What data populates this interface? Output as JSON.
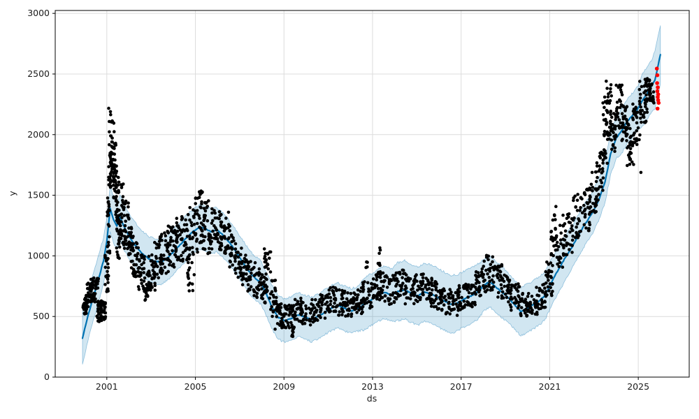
{
  "chart_data": {
    "type": "line",
    "title": "",
    "xlabel": "ds",
    "ylabel": "y",
    "x_range": [
      1998.67,
      2027.3
    ],
    "y_range": [
      0,
      3024
    ],
    "x_ticks": [
      2001,
      2005,
      2009,
      2013,
      2017,
      2021,
      2025
    ],
    "y_ticks": [
      0,
      500,
      1000,
      1500,
      2000,
      2500,
      3000
    ],
    "grid": true,
    "legend": "none",
    "colors": {
      "observed": "#000000",
      "forecast_line": "#0072B2",
      "uncertainty_fill": "rgba(0,114,178,0.18)",
      "uncertainty_edge": "rgba(0,114,178,0.38)",
      "highlight": "#ff0000"
    },
    "forecast": {
      "x": [
        1999.9,
        2000.1,
        2000.35,
        2000.6,
        2000.85,
        2001.0,
        2001.15,
        2001.3,
        2001.45,
        2001.6,
        2001.75,
        2001.95,
        2002.15,
        2002.4,
        2002.65,
        2002.9,
        2003.15,
        2003.45,
        2003.75,
        2004.05,
        2004.35,
        2004.65,
        2004.95,
        2005.2,
        2005.45,
        2005.7,
        2005.95,
        2006.2,
        2006.45,
        2006.7,
        2006.95,
        2007.2,
        2007.45,
        2007.7,
        2007.95,
        2008.2,
        2008.45,
        2008.75,
        2009.05,
        2009.35,
        2009.65,
        2009.95,
        2010.25,
        2010.55,
        2010.85,
        2011.15,
        2011.45,
        2011.75,
        2012.05,
        2012.35,
        2012.65,
        2012.95,
        2013.25,
        2013.55,
        2013.85,
        2014.15,
        2014.45,
        2014.75,
        2015.05,
        2015.35,
        2015.65,
        2015.95,
        2016.25,
        2016.55,
        2016.85,
        2017.15,
        2017.45,
        2017.75,
        2018.05,
        2018.3,
        2018.55,
        2018.85,
        2019.15,
        2019.45,
        2019.7,
        2019.95,
        2020.2,
        2020.5,
        2020.8,
        2021.1,
        2021.4,
        2021.7,
        2022.0,
        2022.3,
        2022.6,
        2022.9,
        2023.2,
        2023.5,
        2023.75,
        2024.0,
        2024.25,
        2024.5,
        2024.75,
        2025.0,
        2025.2,
        2025.4,
        2025.6,
        2025.75,
        2025.85,
        2026.0
      ],
      "yhat": [
        320,
        470,
        640,
        790,
        960,
        1120,
        1390,
        1300,
        1245,
        1320,
        1250,
        1180,
        1120,
        1060,
        1010,
        975,
        955,
        950,
        985,
        1040,
        1100,
        1160,
        1210,
        1235,
        1225,
        1200,
        1215,
        1180,
        1130,
        1070,
        1000,
        930,
        865,
        815,
        780,
        690,
        580,
        490,
        465,
        485,
        515,
        495,
        475,
        500,
        535,
        570,
        590,
        565,
        545,
        565,
        605,
        640,
        675,
        700,
        675,
        705,
        720,
        690,
        670,
        700,
        685,
        655,
        625,
        600,
        615,
        645,
        670,
        705,
        760,
        790,
        745,
        700,
        650,
        590,
        540,
        565,
        590,
        625,
        675,
        790,
        890,
        985,
        1070,
        1170,
        1265,
        1345,
        1455,
        1610,
        1840,
        1970,
        2030,
        2110,
        2160,
        2220,
        2290,
        2340,
        2400,
        2450,
        2530,
        2660
      ],
      "interval_halfwidth": [
        215,
        205,
        195,
        195,
        190,
        190,
        190,
        190,
        190,
        190,
        190,
        190,
        185,
        185,
        185,
        185,
        185,
        185,
        185,
        185,
        185,
        185,
        185,
        185,
        185,
        185,
        185,
        180,
        180,
        180,
        180,
        180,
        180,
        180,
        180,
        180,
        180,
        180,
        180,
        180,
        180,
        180,
        185,
        185,
        185,
        185,
        185,
        185,
        185,
        185,
        215,
        215,
        215,
        215,
        215,
        240,
        240,
        240,
        240,
        240,
        240,
        240,
        240,
        240,
        230,
        230,
        230,
        230,
        210,
        210,
        210,
        210,
        200,
        200,
        200,
        200,
        200,
        200,
        200,
        190,
        190,
        190,
        175,
        175,
        175,
        175,
        170,
        170,
        170,
        170,
        185,
        185,
        185,
        185,
        215,
        215,
        215,
        240,
        240,
        240
      ]
    },
    "observations": {
      "marker_radius": 2.3,
      "clusters_format": [
        "x_start",
        "x_end",
        "y_low",
        "y_high",
        "count"
      ],
      "clusters": [
        [
          1999.9,
          2000.1,
          520,
          660,
          26
        ],
        [
          2000.05,
          2000.3,
          560,
          780,
          30
        ],
        [
          2000.25,
          2000.5,
          620,
          820,
          28
        ],
        [
          2000.45,
          2000.62,
          730,
          815,
          14
        ],
        [
          2000.55,
          2000.78,
          450,
          640,
          30
        ],
        [
          2000.72,
          2000.95,
          470,
          630,
          30
        ],
        [
          2000.9,
          2001.08,
          700,
          1010,
          24
        ],
        [
          2001.02,
          2001.14,
          1000,
          1490,
          20
        ],
        [
          2001.08,
          2001.25,
          1550,
          2250,
          34
        ],
        [
          2001.15,
          2001.35,
          1600,
          2110,
          30
        ],
        [
          2001.28,
          2001.45,
          1450,
          1950,
          28
        ],
        [
          2001.38,
          2001.55,
          1280,
          1700,
          26
        ],
        [
          2001.42,
          2001.58,
          950,
          1290,
          18
        ],
        [
          2001.52,
          2001.78,
          1100,
          1610,
          30
        ],
        [
          2001.72,
          2002.0,
          1050,
          1460,
          30
        ],
        [
          2001.95,
          2002.2,
          900,
          1260,
          28
        ],
        [
          2002.15,
          2002.45,
          800,
          1110,
          28
        ],
        [
          2002.4,
          2002.7,
          700,
          1010,
          28
        ],
        [
          2002.65,
          2002.95,
          590,
          900,
          28
        ],
        [
          2002.9,
          2003.2,
          700,
          1010,
          28
        ],
        [
          2003.15,
          2003.5,
          800,
          1160,
          28
        ],
        [
          2003.45,
          2003.8,
          850,
          1210,
          28
        ],
        [
          2003.75,
          2004.1,
          900,
          1260,
          28
        ],
        [
          2004.05,
          2004.4,
          950,
          1310,
          28
        ],
        [
          2004.35,
          2004.7,
          950,
          1350,
          28
        ],
        [
          2004.6,
          2004.95,
          700,
          1010,
          20
        ],
        [
          2004.7,
          2005.1,
          1000,
          1400,
          28
        ],
        [
          2005.0,
          2005.35,
          1100,
          1560,
          30
        ],
        [
          2005.3,
          2005.6,
          1050,
          1460,
          28
        ],
        [
          2005.55,
          2005.9,
          1000,
          1390,
          28
        ],
        [
          2005.85,
          2006.2,
          1050,
          1400,
          28
        ],
        [
          2006.15,
          2006.5,
          1000,
          1360,
          26
        ],
        [
          2006.45,
          2006.8,
          900,
          1260,
          26
        ],
        [
          2006.75,
          2007.1,
          800,
          1110,
          26
        ],
        [
          2007.05,
          2007.4,
          750,
          1010,
          26
        ],
        [
          2007.35,
          2007.7,
          700,
          960,
          26
        ],
        [
          2007.65,
          2008.0,
          650,
          900,
          24
        ],
        [
          2007.95,
          2008.25,
          600,
          860,
          24
        ],
        [
          2008.1,
          2008.42,
          840,
          1060,
          20
        ],
        [
          2008.35,
          2008.7,
          500,
          800,
          26
        ],
        [
          2008.6,
          2009.0,
          380,
          610,
          28
        ],
        [
          2008.95,
          2009.4,
          400,
          610,
          28
        ],
        [
          2009.3,
          2009.5,
          330,
          450,
          10
        ],
        [
          2009.35,
          2009.8,
          450,
          660,
          28
        ],
        [
          2009.75,
          2010.2,
          420,
          630,
          28
        ],
        [
          2010.15,
          2010.6,
          450,
          650,
          28
        ],
        [
          2010.55,
          2011.0,
          480,
          690,
          28
        ],
        [
          2010.95,
          2011.4,
          520,
          750,
          28
        ],
        [
          2011.35,
          2011.8,
          500,
          720,
          28
        ],
        [
          2011.75,
          2012.2,
          480,
          700,
          28
        ],
        [
          2012.15,
          2012.6,
          520,
          740,
          28
        ],
        [
          2012.55,
          2013.0,
          560,
          800,
          28
        ],
        [
          2012.7,
          2012.78,
          900,
          960,
          3
        ],
        [
          2012.95,
          2013.3,
          600,
          870,
          26
        ],
        [
          2013.22,
          2013.38,
          880,
          1070,
          8
        ],
        [
          2013.3,
          2013.7,
          620,
          870,
          26
        ],
        [
          2013.65,
          2014.1,
          600,
          840,
          28
        ],
        [
          2014.05,
          2014.5,
          640,
          890,
          28
        ],
        [
          2014.45,
          2014.9,
          600,
          850,
          28
        ],
        [
          2014.85,
          2015.3,
          620,
          870,
          28
        ],
        [
          2015.25,
          2015.7,
          600,
          830,
          28
        ],
        [
          2015.65,
          2016.1,
          560,
          790,
          28
        ],
        [
          2016.05,
          2016.5,
          520,
          730,
          28
        ],
        [
          2016.45,
          2016.9,
          500,
          710,
          28
        ],
        [
          2016.85,
          2017.3,
          540,
          770,
          28
        ],
        [
          2017.25,
          2017.7,
          580,
          810,
          28
        ],
        [
          2017.65,
          2018.05,
          650,
          920,
          26
        ],
        [
          2018.0,
          2018.45,
          700,
          1010,
          28
        ],
        [
          2018.4,
          2018.85,
          650,
          930,
          28
        ],
        [
          2018.8,
          2019.25,
          600,
          860,
          28
        ],
        [
          2019.2,
          2019.65,
          550,
          770,
          28
        ],
        [
          2019.6,
          2020.05,
          500,
          690,
          28
        ],
        [
          2020.0,
          2020.45,
          510,
          670,
          28
        ],
        [
          2020.4,
          2020.85,
          560,
          770,
          28
        ],
        [
          2020.8,
          2021.15,
          650,
          960,
          26
        ],
        [
          2021.05,
          2021.3,
          950,
          1410,
          20
        ],
        [
          2021.25,
          2021.65,
          900,
          1260,
          28
        ],
        [
          2021.6,
          2022.05,
          1000,
          1360,
          28
        ],
        [
          2022.0,
          2022.45,
          1150,
          1510,
          28
        ],
        [
          2022.4,
          2022.85,
          1200,
          1560,
          28
        ],
        [
          2022.8,
          2023.15,
          1350,
          1710,
          28
        ],
        [
          2023.1,
          2023.42,
          1450,
          1860,
          26
        ],
        [
          2023.38,
          2023.62,
          1750,
          2310,
          28
        ],
        [
          2023.55,
          2023.8,
          1900,
          2460,
          28
        ],
        [
          2023.75,
          2024.0,
          1850,
          2210,
          24
        ],
        [
          2023.95,
          2024.3,
          2050,
          2410,
          28
        ],
        [
          2024.25,
          2024.5,
          1950,
          2310,
          24
        ],
        [
          2024.45,
          2024.68,
          1800,
          2110,
          18
        ],
        [
          2024.6,
          2024.8,
          1680,
          1960,
          12
        ],
        [
          2024.75,
          2025.1,
          1900,
          2260,
          28
        ],
        [
          2025.05,
          2025.4,
          2100,
          2460,
          30
        ],
        [
          2025.3,
          2025.55,
          2250,
          2490,
          26
        ],
        [
          2025.5,
          2025.72,
          2250,
          2450,
          20
        ]
      ],
      "outliers": [
        [
          2024.5,
          1745
        ],
        [
          2025.12,
          1688
        ],
        [
          2012.73,
          950
        ],
        [
          2009.4,
          335
        ],
        [
          2000.35,
          760
        ]
      ]
    },
    "highlight": {
      "marker_radius": 2.8,
      "points": [
        [
          2025.84,
          2545
        ],
        [
          2025.86,
          2490
        ],
        [
          2025.85,
          2425
        ],
        [
          2025.88,
          2390
        ],
        [
          2025.86,
          2358
        ],
        [
          2025.9,
          2332
        ],
        [
          2025.88,
          2310
        ],
        [
          2025.9,
          2285
        ],
        [
          2025.92,
          2262
        ],
        [
          2025.87,
          2215
        ]
      ]
    }
  }
}
